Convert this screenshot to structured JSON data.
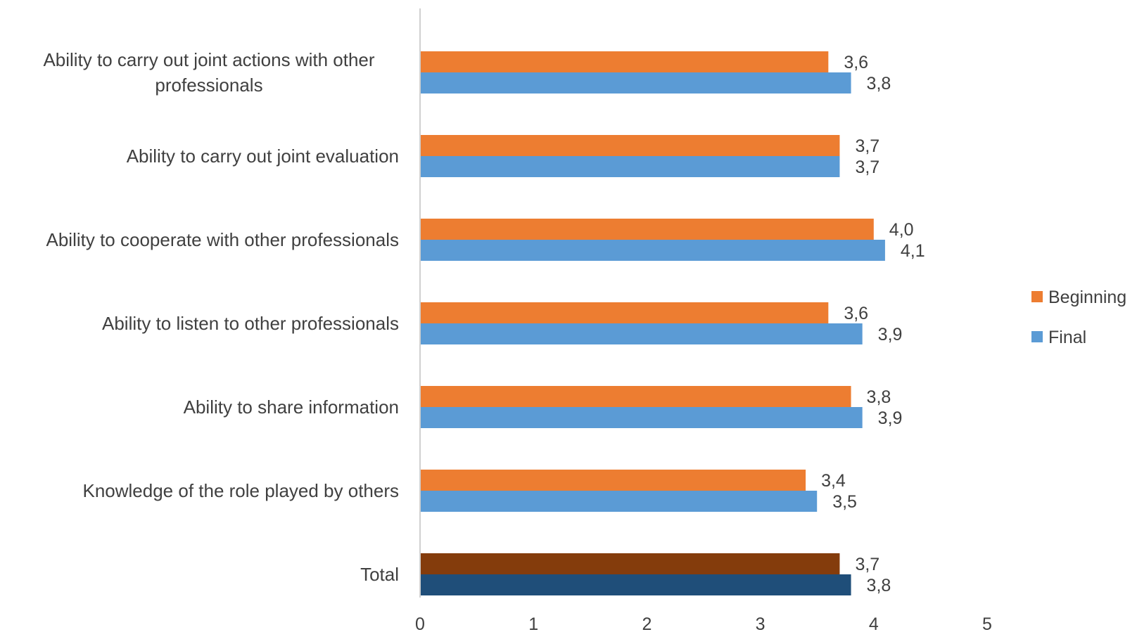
{
  "chart_data": {
    "type": "bar",
    "orientation": "horizontal",
    "categories": [
      [
        "Ability to carry out joint actions with other",
        "professionals"
      ],
      [
        "Ability to carry out joint evaluation"
      ],
      [
        "Ability to cooperate with other professionals"
      ],
      [
        "Ability to listen to other professionals"
      ],
      [
        "Ability to share information"
      ],
      [
        "Knowledge of the role played by others"
      ],
      [
        "Total"
      ]
    ],
    "series": [
      {
        "name": "Beginning",
        "color": "#ED7D31",
        "highlight_color": "#843C0C",
        "values": [
          3.6,
          3.7,
          4.0,
          3.6,
          3.8,
          3.4,
          3.7
        ],
        "labels": [
          "3,6",
          "3,7",
          "4,0",
          "3,6",
          "3,8",
          "3,4",
          "3,7"
        ]
      },
      {
        "name": "Final",
        "color": "#5B9BD5",
        "highlight_color": "#1F4E79",
        "values": [
          3.8,
          3.7,
          4.1,
          3.9,
          3.9,
          3.5,
          3.8
        ],
        "labels": [
          "3,8",
          "3,7",
          "4,1",
          "3,9",
          "3,9",
          "3,5",
          "3,8"
        ]
      }
    ],
    "highlighted_category": "Total",
    "xlim": [
      0,
      5
    ],
    "xticks": [
      "0",
      "1",
      "2",
      "3",
      "4",
      "5"
    ],
    "title": "",
    "xlabel": "",
    "ylabel": "",
    "grid": false,
    "legend_position": "right"
  }
}
